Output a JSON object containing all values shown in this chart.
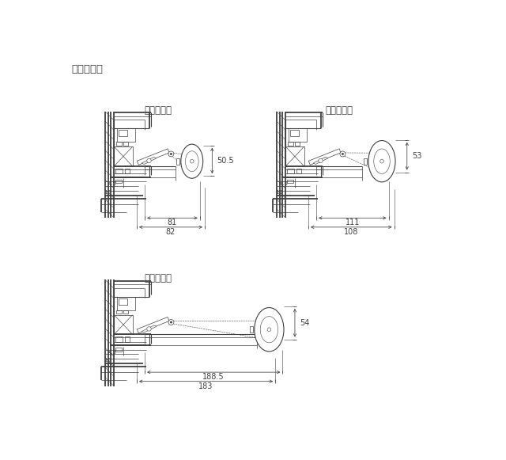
{
  "title": "滑車納まり",
  "subtitle_small": "滑車（小）",
  "subtitle_medium": "滑車（中）",
  "subtitle_large": "滑車（大）",
  "dim_small_h": "50.5",
  "dim_small_w1": "81",
  "dim_small_w2": "82",
  "dim_medium_h": "53",
  "dim_medium_w1": "111",
  "dim_medium_w2": "108",
  "dim_large_h": "54",
  "dim_large_w1": "188.5",
  "dim_large_w2": "183",
  "bg_color": "#ffffff",
  "line_color": "#404040",
  "dim_color": "#404040",
  "font_size_title": 9.5,
  "font_size_subtitle": 8.5,
  "font_size_dim": 7.0
}
